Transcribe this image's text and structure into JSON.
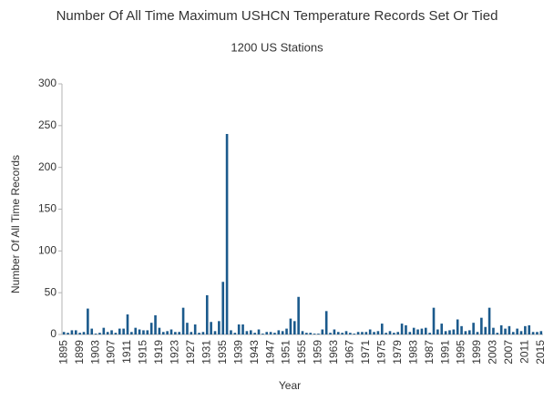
{
  "chart_data": {
    "type": "bar",
    "title": "Number Of All Time Maximum USHCN Temperature Records Set Or Tied",
    "subtitle": "1200 US Stations",
    "x_label": "Year",
    "y_label": "Number Of All Time Records",
    "color": "#1b5a8c",
    "grid": false,
    "ylim": [
      0,
      300
    ],
    "yticks": [
      0,
      50,
      100,
      150,
      200,
      250,
      300
    ],
    "categories": [
      "1895",
      null,
      null,
      null,
      "1899",
      null,
      null,
      null,
      "1903",
      null,
      null,
      null,
      "1907",
      null,
      null,
      null,
      "1911",
      null,
      null,
      null,
      "1915",
      null,
      null,
      null,
      "1919",
      null,
      null,
      null,
      "1923",
      null,
      null,
      null,
      "1927",
      null,
      null,
      null,
      "1931",
      null,
      null,
      null,
      "1935",
      null,
      null,
      null,
      "1939",
      null,
      null,
      null,
      "1943",
      null,
      null,
      null,
      "1947",
      null,
      null,
      null,
      "1951",
      null,
      null,
      null,
      "1955",
      null,
      null,
      null,
      "1959",
      null,
      null,
      null,
      "1963",
      null,
      null,
      null,
      "1967",
      null,
      null,
      null,
      "1971",
      null,
      null,
      null,
      "1975",
      null,
      null,
      null,
      "1979",
      null,
      null,
      null,
      "1983",
      null,
      null,
      null,
      "1987",
      null,
      null,
      null,
      "1991",
      null,
      null,
      null,
      "1995",
      null,
      null,
      null,
      "1999",
      null,
      null,
      null,
      "2003",
      null,
      null,
      null,
      "2007",
      null,
      null,
      null,
      "2011",
      null,
      null,
      null,
      "2015"
    ],
    "values": [
      3,
      2,
      5,
      5,
      2,
      3,
      31,
      7,
      1,
      2,
      8,
      3,
      5,
      2,
      7,
      7,
      24,
      3,
      8,
      6,
      5,
      5,
      14,
      23,
      8,
      3,
      4,
      6,
      3,
      3,
      32,
      14,
      3,
      12,
      2,
      3,
      47,
      15,
      4,
      16,
      63,
      240,
      5,
      2,
      12,
      12,
      4,
      5,
      2,
      6,
      1,
      3,
      3,
      2,
      5,
      4,
      7,
      19,
      16,
      45,
      4,
      2,
      2,
      1,
      1,
      6,
      28,
      2,
      6,
      3,
      2,
      4,
      2,
      1,
      3,
      3,
      3,
      6,
      3,
      4,
      13,
      2,
      4,
      2,
      3,
      13,
      11,
      3,
      8,
      6,
      7,
      8,
      2,
      32,
      6,
      13,
      4,
      5,
      6,
      18,
      10,
      4,
      5,
      14,
      3,
      20,
      9,
      32,
      8,
      2,
      11,
      7,
      10,
      3,
      7,
      4,
      10,
      11,
      3,
      3,
      4
    ]
  }
}
